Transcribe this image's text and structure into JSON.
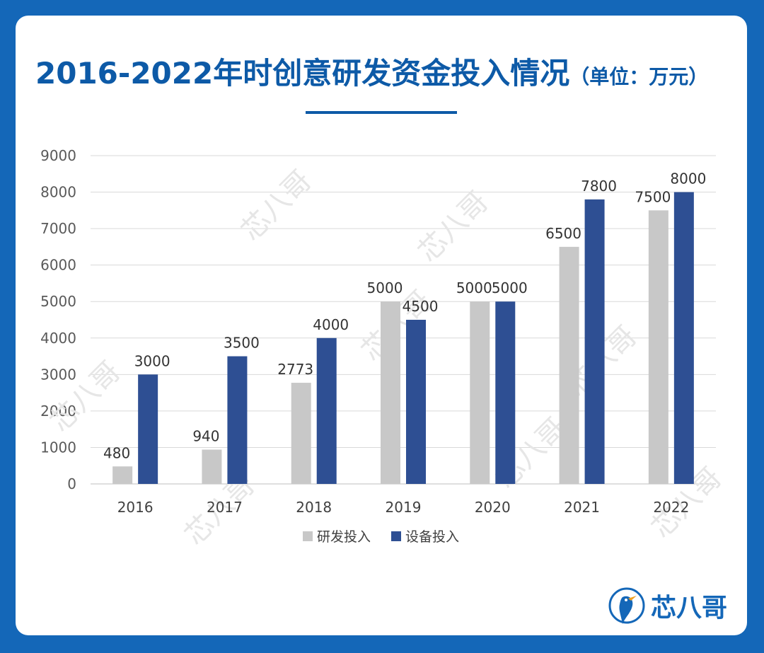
{
  "header": {
    "title": "2016-2022年时创意研发资金投入情况",
    "unit": "（单位：万元）"
  },
  "brand": {
    "name": "芯八哥",
    "logo_icon": "bird-circle-icon",
    "watermark": "芯八哥"
  },
  "colors": {
    "accent": "#0d5aa7",
    "series_rd": "#c8c8c8",
    "series_equip": "#2e4f93",
    "grid": "#d9d9d9"
  },
  "chart_data": {
    "type": "bar",
    "categories": [
      "2016",
      "2017",
      "2018",
      "2019",
      "2020",
      "2021",
      "2022"
    ],
    "series": [
      {
        "name": "研发投入",
        "values": [
          480,
          940,
          2773,
          5000,
          5000,
          6500,
          7500
        ]
      },
      {
        "name": "设备投入",
        "values": [
          3000,
          3500,
          4000,
          4500,
          5000,
          7800,
          8000
        ]
      }
    ],
    "ylim": [
      0,
      9000
    ],
    "yticks": [
      0,
      1000,
      2000,
      3000,
      4000,
      5000,
      6000,
      7000,
      8000,
      9000
    ],
    "grid": true,
    "legend_position": "bottom"
  }
}
